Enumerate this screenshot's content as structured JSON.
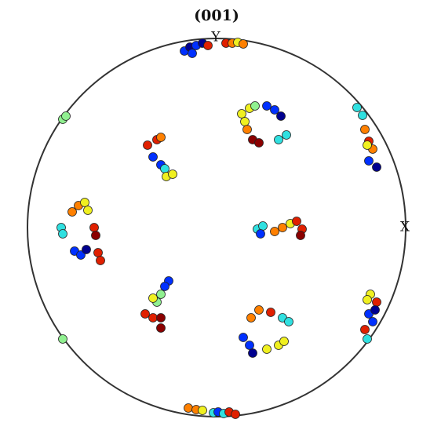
{
  "chart_data": {
    "type": "scatter",
    "title": "(001)",
    "xlabel": "X",
    "ylabel": "Y",
    "xlim": [
      -241,
      241
    ],
    "ylim": [
      -241,
      241
    ],
    "x": [
      -41,
      -34,
      -26,
      -18,
      -31,
      -11,
      12,
      20,
      27,
      34,
      -196,
      -192,
      32,
      36,
      42,
      49,
      64,
      74,
      82,
      79,
      89,
      46,
      54,
      39,
      179,
      186,
      189,
      194,
      199,
      192,
      194,
      204,
      -88,
      -76,
      -71,
      -81,
      -71,
      -66,
      -64,
      -56,
      -176,
      -184,
      -168,
      -164,
      -198,
      -196,
      -181,
      -173,
      -166,
      -156,
      -154,
      -151,
      -148,
      52,
      59,
      56,
      74,
      84,
      94,
      102,
      109,
      107,
      196,
      192,
      204,
      194,
      199,
      202,
      189,
      192,
      -61,
      -66,
      -71,
      -76,
      -81,
      -91,
      -81,
      -71,
      -71,
      44,
      54,
      69,
      84,
      92,
      34,
      42,
      46,
      64,
      79,
      86,
      -196,
      -36,
      -26,
      -18,
      -4,
      2,
      9,
      16,
      24
    ],
    "values": [
      225,
      230,
      232,
      235,
      222,
      232,
      235,
      235,
      236,
      234,
      138,
      142,
      145,
      135,
      152,
      155,
      155,
      150,
      142,
      112,
      118,
      112,
      108,
      125,
      153,
      143,
      125,
      110,
      100,
      105,
      85,
      77,
      105,
      112,
      115,
      90,
      80,
      75,
      65,
      68,
      28,
      20,
      32,
      22,
      0,
      -8,
      -30,
      -35,
      -28,
      0,
      -10,
      -32,
      -42,
      -2,
      2,
      -8,
      -5,
      0,
      5,
      8,
      -2,
      -10,
      -85,
      -92,
      -95,
      -110,
      -120,
      -105,
      -130,
      -142,
      -68,
      -75,
      -85,
      -95,
      -90,
      -110,
      -115,
      -115,
      -128,
      -115,
      -105,
      -108,
      -115,
      -120,
      -140,
      -150,
      -160,
      -155,
      -150,
      -145,
      -142,
      -230,
      -232,
      -233,
      -236,
      -235,
      -237,
      -235,
      -238
    ],
    "colors": [
      "#0030ff",
      "#00008f",
      "#0030ff",
      "#00008f",
      "#0030ff",
      "#e02000",
      "#e02000",
      "#ff8000",
      "#f0f020",
      "#ff8000",
      "#90f090",
      "#90f090",
      "#f0f020",
      "#f0f020",
      "#f0f020",
      "#90f090",
      "#0030ff",
      "#0030ff",
      "#00008f",
      "#30e0e0",
      "#30e0e0",
      "#8b0000",
      "#8b0000",
      "#ff8000",
      "#30e0e0",
      "#30e0e0",
      "#ff8000",
      "#e02000",
      "#ff8000",
      "#f0f020",
      "#0030ff",
      "#00008f",
      "#e02000",
      "#e02000",
      "#ff8000",
      "#0030ff",
      "#0030ff",
      "#30e0e0",
      "#f0f020",
      "#f0f020",
      "#ff8000",
      "#ff8000",
      "#f0f020",
      "#f0f020",
      "#30e0e0",
      "#30e0e0",
      "#0030ff",
      "#0030ff",
      "#00008f",
      "#e02000",
      "#8b0000",
      "#e02000",
      "#e02000",
      "#30e0e0",
      "#30e0e0",
      "#0030ff",
      "#ff8000",
      "#ff8000",
      "#f0f020",
      "#e02000",
      "#e02000",
      "#8b0000",
      "#f0f020",
      "#f0f020",
      "#e02000",
      "#0030ff",
      "#0030ff",
      "#00008f",
      "#e02000",
      "#30e0e0",
      "#0030ff",
      "#0030ff",
      "#90f090",
      "#90f090",
      "#f0f020",
      "#e02000",
      "#e02000",
      "#8b0000",
      "#8b0000",
      "#ff8000",
      "#ff8000",
      "#e02000",
      "#30e0e0",
      "#30e0e0",
      "#0030ff",
      "#0030ff",
      "#00008f",
      "#f0f020",
      "#f0f020",
      "#f0f020",
      "#90f090",
      "#ff8000",
      "#ff8000",
      "#f0f020",
      "#30e0e0",
      "#0030ff",
      "#30e0e0",
      "#e02000",
      "#e02000"
    ]
  }
}
